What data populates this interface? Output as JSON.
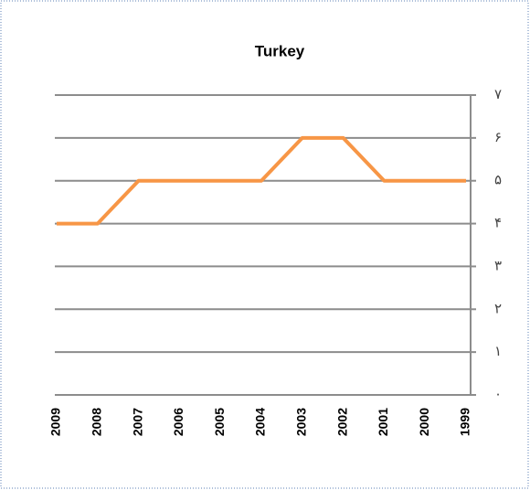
{
  "chart_data": {
    "type": "line",
    "title": "Turkey",
    "categories": [
      "2009",
      "2008",
      "2007",
      "2006",
      "2005",
      "2004",
      "2003",
      "2002",
      "2001",
      "2000",
      "1999"
    ],
    "series": [
      {
        "name": "Turkey",
        "color": "#f79646",
        "values": [
          4,
          4,
          5,
          5,
          5,
          5,
          6,
          6,
          5,
          5,
          5
        ]
      }
    ],
    "ylim": [
      0,
      7
    ],
    "yticks": [
      {
        "value": 0,
        "label": "۰"
      },
      {
        "value": 1,
        "label": "۱"
      },
      {
        "value": 2,
        "label": "۲"
      },
      {
        "value": 3,
        "label": "۳"
      },
      {
        "value": 4,
        "label": "۴"
      },
      {
        "value": 5,
        "label": "۵"
      },
      {
        "value": 6,
        "label": "۶"
      },
      {
        "value": 7,
        "label": "۷"
      }
    ],
    "grid": true
  }
}
